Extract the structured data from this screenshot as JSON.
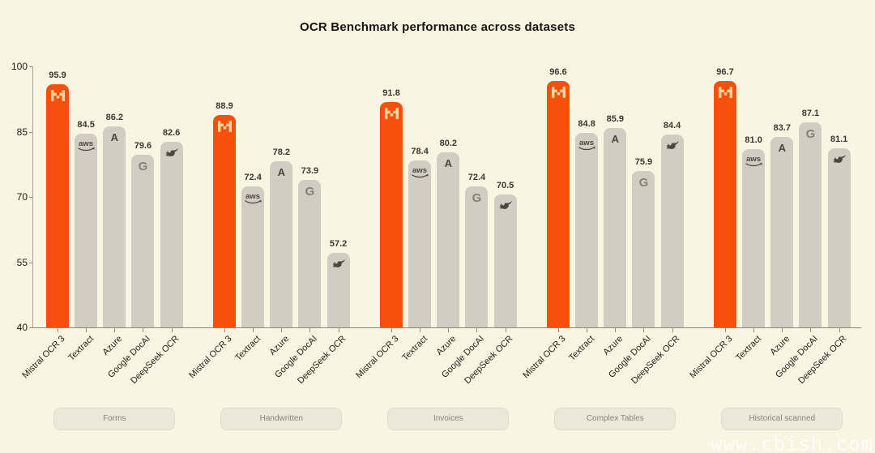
{
  "title": "OCR Benchmark performance across datasets",
  "watermark": "www.cbish.com",
  "chart_data": {
    "type": "bar",
    "title": "OCR Benchmark performance across datasets",
    "xlabel": "",
    "ylabel": "",
    "ylim": [
      40,
      100
    ],
    "y_ticks": [
      100,
      85,
      70,
      55,
      40
    ],
    "grid": false,
    "legend_position": "none",
    "series_labels": [
      "Mistral OCR 3",
      "Textract",
      "Azure",
      "Google DocAI",
      "DeepSeek OCR"
    ],
    "series_icons": [
      "mistral-logo-icon",
      "aws-logo-icon",
      "azure-logo-icon",
      "google-logo-icon",
      "deepseek-logo-icon"
    ],
    "highlighted_series": "Mistral OCR 3",
    "categories": [
      "Forms",
      "Handwritten",
      "Invoices",
      "Complex Tables",
      "Historical scanned"
    ],
    "groups": [
      {
        "category": "Forms",
        "values": [
          95.9,
          84.5,
          86.2,
          79.6,
          82.6
        ]
      },
      {
        "category": "Handwritten",
        "values": [
          88.9,
          72.4,
          78.2,
          73.9,
          57.2
        ]
      },
      {
        "category": "Invoices",
        "values": [
          91.8,
          78.4,
          80.2,
          72.4,
          70.5
        ]
      },
      {
        "category": "Complex Tables",
        "values": [
          96.6,
          84.8,
          85.9,
          75.9,
          84.4
        ]
      },
      {
        "category": "Historical scanned",
        "values": [
          96.7,
          81.0,
          83.7,
          87.1,
          81.1
        ]
      }
    ],
    "colors": {
      "background": "#FAF4E2",
      "highlight_bar": "#F8500C",
      "default_bar": "#D2CCC3",
      "value_label": "#3D3932",
      "axis": "#8F8A80"
    }
  }
}
